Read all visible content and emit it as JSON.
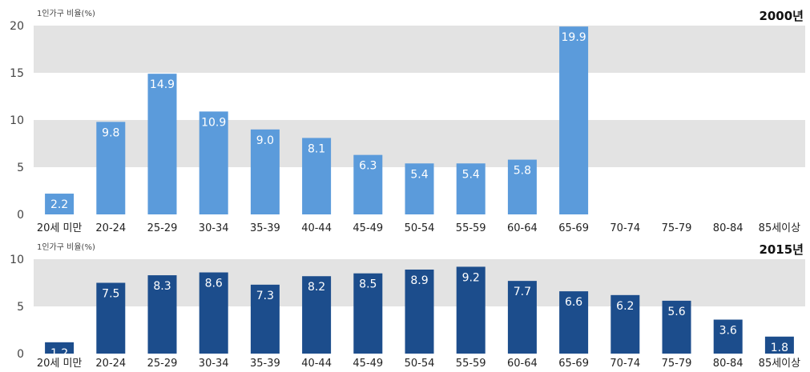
{
  "colors": {
    "band": "#e3e3e3",
    "top_bar": "#5b9bdb",
    "bottom_bar": "#1c4d8c"
  },
  "chart_data": [
    {
      "type": "bar",
      "year_label": "2000년",
      "ylabel": "1인가구 비율(%)",
      "ylim": [
        0,
        20
      ],
      "yticks": [
        0,
        5,
        10,
        15,
        20
      ],
      "categories": [
        "20세 미만",
        "20-24",
        "25-29",
        "30-34",
        "35-39",
        "40-44",
        "45-49",
        "50-54",
        "55-59",
        "60-64",
        "65-69",
        "70-74",
        "75-79",
        "80-84",
        "85세이상"
      ],
      "values": [
        2.2,
        9.8,
        14.9,
        10.9,
        9.0,
        8.1,
        6.3,
        5.4,
        5.4,
        5.8,
        19.9,
        null,
        null,
        null,
        null
      ],
      "value_labels": [
        "2.2",
        "9.8",
        "14.9",
        "10.9",
        "9.0",
        "8.1",
        "6.3",
        "5.4",
        "5.4",
        "5.8",
        "19.9",
        "",
        "",
        "",
        ""
      ],
      "bar_color": "#5b9bdb",
      "grid": "alternating horizontal bands"
    },
    {
      "type": "bar",
      "year_label": "2015년",
      "ylabel": "1인가구 비율(%)",
      "ylim": [
        0,
        10
      ],
      "yticks": [
        0,
        5,
        10
      ],
      "categories": [
        "20세 미만",
        "20-24",
        "25-29",
        "30-34",
        "35-39",
        "40-44",
        "45-49",
        "50-54",
        "55-59",
        "60-64",
        "65-69",
        "70-74",
        "75-79",
        "80-84",
        "85세이상"
      ],
      "values": [
        1.2,
        7.5,
        8.3,
        8.6,
        7.3,
        8.2,
        8.5,
        8.9,
        9.2,
        7.7,
        6.6,
        6.2,
        5.6,
        3.6,
        1.8
      ],
      "value_labels": [
        "1.2",
        "7.5",
        "8.3",
        "8.6",
        "7.3",
        "8.2",
        "8.5",
        "8.9",
        "9.2",
        "7.7",
        "6.6",
        "6.2",
        "5.6",
        "3.6",
        "1.8"
      ],
      "bar_color": "#1c4d8c",
      "grid": "alternating horizontal bands"
    }
  ]
}
